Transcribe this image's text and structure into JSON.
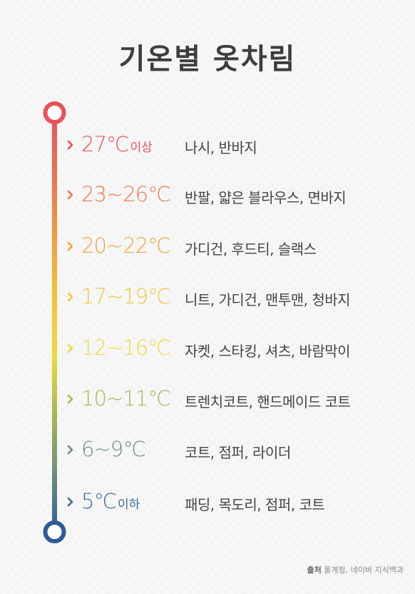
{
  "title": "기온별 옷차림",
  "rows": [
    {
      "temp": "27℃",
      "suffix": "이상",
      "clothes": "나시, 반바지",
      "color": "#e8525a"
    },
    {
      "temp": "23~26℃",
      "suffix": "",
      "clothes": "반팔, 얇은 블라우스, 면바지",
      "color": "#ec7a4e"
    },
    {
      "temp": "20~22℃",
      "suffix": "",
      "clothes": "가디건, 후드티, 슬랙스",
      "color": "#efa53c"
    },
    {
      "temp": "17~19℃",
      "suffix": "",
      "clothes": "니트, 가디건, 맨투맨, 청바지",
      "color": "#f0c63a"
    },
    {
      "temp": "12~16℃",
      "suffix": "",
      "clothes": "자켓, 스타킹, 셔츠, 바람막이",
      "color": "#e9dc3e"
    },
    {
      "temp": "10~11℃",
      "suffix": "",
      "clothes": "트렌치코트, 핸드메이드 코트",
      "color": "#a8b653"
    },
    {
      "temp": "6~9℃",
      "suffix": "",
      "clothes": "코트, 점퍼, 라이더",
      "color": "#6f8f7a"
    },
    {
      "temp": "5℃",
      "suffix": "이하",
      "clothes": "패딩, 목도리, 점퍼, 코트",
      "color": "#3b6aa0"
    }
  ],
  "source": {
    "label": "출처",
    "text": "통계청, 네이버 지식백과"
  },
  "colors": {
    "top": "#e8525a",
    "bottom": "#2d5c96"
  }
}
